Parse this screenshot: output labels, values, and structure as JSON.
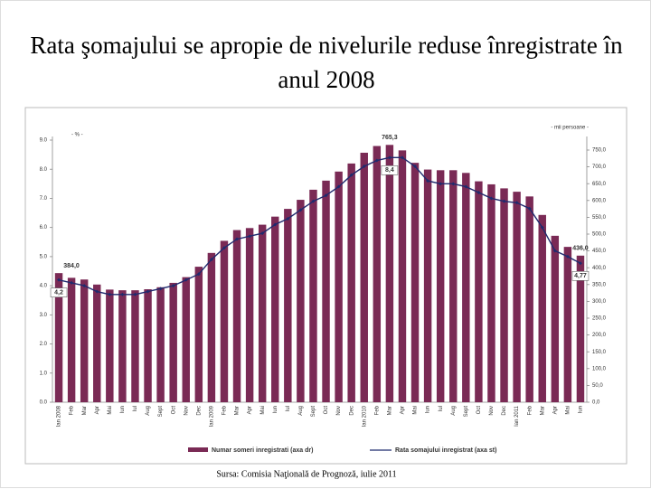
{
  "chart_data": {
    "type": "bar-line",
    "title": "Rata şomajului se apropie de nivelurile reduse înregistrate în anul 2008",
    "ylabel": "- % -",
    "y2label": "- mii persoane -",
    "source": "Sursa: Comisia Naţională de Prognoză, iulie 2011",
    "categories": [
      "Ian 2008",
      "Feb",
      "Mar",
      "Apr",
      "Mai",
      "Iun",
      "Iul",
      "Aug",
      "Sept",
      "Oct",
      "Nov",
      "Dec",
      "Ian 2009",
      "Feb",
      "Mar",
      "Apr",
      "Mai",
      "Iun",
      "Iul",
      "Aug",
      "Sept",
      "Oct",
      "Nov",
      "Dec",
      "Ian 2010",
      "Feb",
      "Mar",
      "Apr",
      "Mai",
      "Iun",
      "Iul",
      "Aug",
      "Sept",
      "Oct",
      "Nov",
      "Dec",
      "Ian 2011",
      "Feb",
      "Mar",
      "Apr",
      "Mai",
      "Iun"
    ],
    "series": [
      {
        "name": "Numar someri inregistrati (axa dr)",
        "type": "bar",
        "axis": "y2",
        "color": "#7a2a55",
        "values": [
          384,
          370,
          365,
          350,
          335,
          333,
          333,
          336,
          342,
          355,
          372,
          403,
          444,
          480,
          512,
          518,
          528,
          552,
          575,
          602,
          632,
          659,
          686,
          710,
          742,
          762,
          765.3,
          749,
          712,
          692,
          690,
          690,
          682,
          657,
          648,
          636,
          626,
          612,
          557,
          495,
          462,
          436
        ],
        "value_labels": [
          "384,0",
          null,
          null,
          null,
          null,
          null,
          null,
          null,
          null,
          null,
          null,
          null,
          null,
          null,
          null,
          null,
          null,
          null,
          null,
          null,
          null,
          null,
          null,
          null,
          null,
          null,
          "765,3",
          null,
          null,
          null,
          null,
          null,
          null,
          null,
          null,
          null,
          null,
          null,
          null,
          null,
          null,
          "436,0"
        ]
      },
      {
        "name": "Rata somajului inregistrat (axa st)",
        "type": "line",
        "axis": "y",
        "color": "#1f2a6e",
        "values": [
          4.2,
          4.1,
          4.0,
          3.8,
          3.7,
          3.7,
          3.7,
          3.8,
          3.9,
          4.0,
          4.2,
          4.4,
          4.9,
          5.3,
          5.6,
          5.7,
          5.8,
          6.1,
          6.3,
          6.6,
          6.9,
          7.1,
          7.4,
          7.8,
          8.1,
          8.3,
          8.4,
          8.4,
          8.1,
          7.6,
          7.5,
          7.5,
          7.4,
          7.2,
          7.0,
          6.9,
          6.85,
          6.65,
          6.0,
          5.2,
          5.0,
          4.77
        ],
        "value_labels": [
          "4,2",
          null,
          null,
          null,
          null,
          null,
          null,
          null,
          null,
          null,
          null,
          null,
          null,
          null,
          null,
          null,
          null,
          null,
          null,
          null,
          null,
          null,
          null,
          null,
          null,
          null,
          "8,4",
          null,
          null,
          null,
          null,
          null,
          null,
          null,
          null,
          null,
          null,
          null,
          null,
          null,
          null,
          "4,77"
        ]
      }
    ],
    "ylim": [
      0,
      9
    ],
    "yticks": [
      {
        "value": 0,
        "label": "0.0"
      },
      {
        "value": 1,
        "label": "1.0"
      },
      {
        "value": 2,
        "label": "2.0"
      },
      {
        "value": 3,
        "label": "3.0"
      },
      {
        "value": 4,
        "label": "4.0"
      },
      {
        "value": 5,
        "label": "5.0"
      },
      {
        "value": 6,
        "label": "6.0"
      },
      {
        "value": 7,
        "label": "7.0"
      },
      {
        "value": 8,
        "label": "8.0"
      },
      {
        "value": 9,
        "label": "9.0"
      }
    ],
    "y2lim": [
      0,
      750
    ],
    "y2ticks": [
      {
        "value": 0,
        "label": "0,0"
      },
      {
        "value": 50,
        "label": "50,0"
      },
      {
        "value": 100,
        "label": "100,0"
      },
      {
        "value": 150,
        "label": "150,0"
      },
      {
        "value": 200,
        "label": "200,0"
      },
      {
        "value": 250,
        "label": "250,0"
      },
      {
        "value": 300,
        "label": "300,0"
      },
      {
        "value": 350,
        "label": "350,0"
      },
      {
        "value": 400,
        "label": "400,0"
      },
      {
        "value": 450,
        "label": "450,0"
      },
      {
        "value": 500,
        "label": "500,0"
      },
      {
        "value": 550,
        "label": "550,0"
      },
      {
        "value": 600,
        "label": "600,0"
      },
      {
        "value": 650,
        "label": "650,0"
      },
      {
        "value": 700,
        "label": "700,0"
      },
      {
        "value": 750,
        "label": "750,0"
      }
    ],
    "grid": false
  }
}
